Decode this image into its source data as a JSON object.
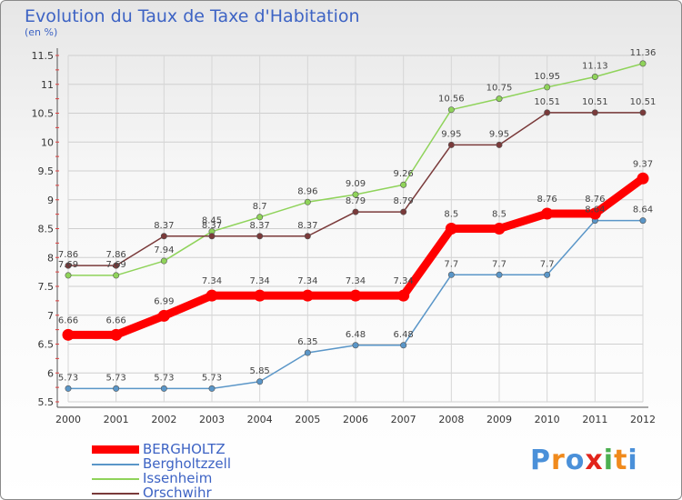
{
  "title": "Evolution du Taux de Taxe d'Habitation",
  "subtitle": "(en %)",
  "logo": {
    "text": "Proxiti",
    "colors": [
      "#4a90d9",
      "#f08a1c",
      "#4a90d9",
      "#e2241b",
      "#4caf50",
      "#f08a1c",
      "#4a90d9"
    ]
  },
  "chart_data": {
    "type": "line",
    "title": "Evolution du Taux de Taxe d'Habitation",
    "ylabel": "(en %)",
    "xlabel": "",
    "x": [
      "2000",
      "2001",
      "2002",
      "2003",
      "2004",
      "2005",
      "2006",
      "2007",
      "2008",
      "2009",
      "2010",
      "2011",
      "2012"
    ],
    "ylim": [
      5.5,
      11.5
    ],
    "yticks": [
      "5.5",
      "6",
      "6.5",
      "7",
      "7.5",
      "8",
      "8.5",
      "9",
      "9.5",
      "10",
      "10.5",
      "11",
      "11.5"
    ],
    "legend_position": "bottom-left",
    "series": [
      {
        "name": "BERGHOLTZ",
        "color": "#ff0000",
        "values": [
          6.66,
          6.66,
          6.99,
          7.34,
          7.34,
          7.34,
          7.34,
          7.34,
          8.5,
          8.5,
          8.76,
          8.76,
          9.37
        ],
        "labels": [
          "6.66",
          "6.66",
          "6.99",
          "7.34",
          "7.34",
          "7.34",
          "7.34",
          "7.34",
          "8.5",
          "8.5",
          "8.76",
          "8.76",
          "9.37"
        ]
      },
      {
        "name": "Bergholtzzell",
        "color": "#5a96c8",
        "values": [
          5.73,
          5.73,
          5.73,
          5.73,
          5.85,
          6.35,
          6.48,
          6.48,
          7.7,
          7.7,
          7.7,
          8.64,
          8.64
        ],
        "labels": [
          "5.73",
          "5.73",
          "5.73",
          "5.73",
          "5.85",
          "6.35",
          "6.48",
          "6.48",
          "7.7",
          "7.7",
          "7.7",
          "8.64",
          "8.64"
        ]
      },
      {
        "name": "Issenheim",
        "color": "#8fd35a",
        "values": [
          7.69,
          7.69,
          7.94,
          8.45,
          8.7,
          8.96,
          9.09,
          9.26,
          10.56,
          10.75,
          10.95,
          11.13,
          11.36
        ],
        "labels": [
          "7.69",
          "7.69",
          "7.94",
          "8.45",
          "8.7",
          "8.96",
          "9.09",
          "9.26",
          "10.56",
          "10.75",
          "10.95",
          "11.13",
          "11.36"
        ]
      },
      {
        "name": "Orschwihr",
        "color": "#7a3a3a",
        "values": [
          7.86,
          7.86,
          8.37,
          8.37,
          8.37,
          8.37,
          8.79,
          8.79,
          9.95,
          9.95,
          10.51,
          10.51,
          10.51
        ],
        "labels": [
          "7.86",
          "7.86",
          "8.37",
          "8.37",
          "8.37",
          "8.37",
          "8.79",
          "8.79",
          "9.95",
          "9.95",
          "10.51",
          "10.51",
          "10.51"
        ]
      }
    ]
  }
}
